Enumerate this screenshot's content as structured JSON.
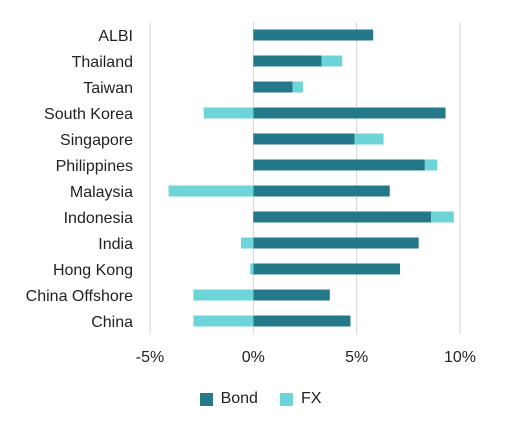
{
  "chart_data": {
    "type": "bar",
    "orientation": "horizontal",
    "stacked": true,
    "categories": [
      "ALBI",
      "Thailand",
      "Taiwan",
      "South Korea",
      "Singapore",
      "Philippines",
      "Malaysia",
      "Indonesia",
      "India",
      "Hong Kong",
      "China Offshore",
      "China"
    ],
    "series": [
      {
        "name": "Bond",
        "color": "#23798a",
        "values": [
          5.8,
          3.3,
          1.9,
          9.3,
          4.9,
          8.3,
          6.6,
          8.6,
          8.0,
          7.1,
          3.7,
          4.7
        ]
      },
      {
        "name": "FX",
        "color": "#6dd4d8",
        "values": [
          0.0,
          1.0,
          0.5,
          -2.4,
          1.4,
          0.6,
          -4.1,
          1.1,
          -0.6,
          -0.15,
          -2.9,
          -2.9
        ]
      }
    ],
    "xlim": [
      -5,
      10
    ],
    "xticks": [
      -5,
      0,
      5,
      10
    ],
    "xtick_labels": [
      "-5%",
      "0%",
      "5%",
      "10%"
    ],
    "grid": "vertical",
    "legend_position": "bottom"
  }
}
